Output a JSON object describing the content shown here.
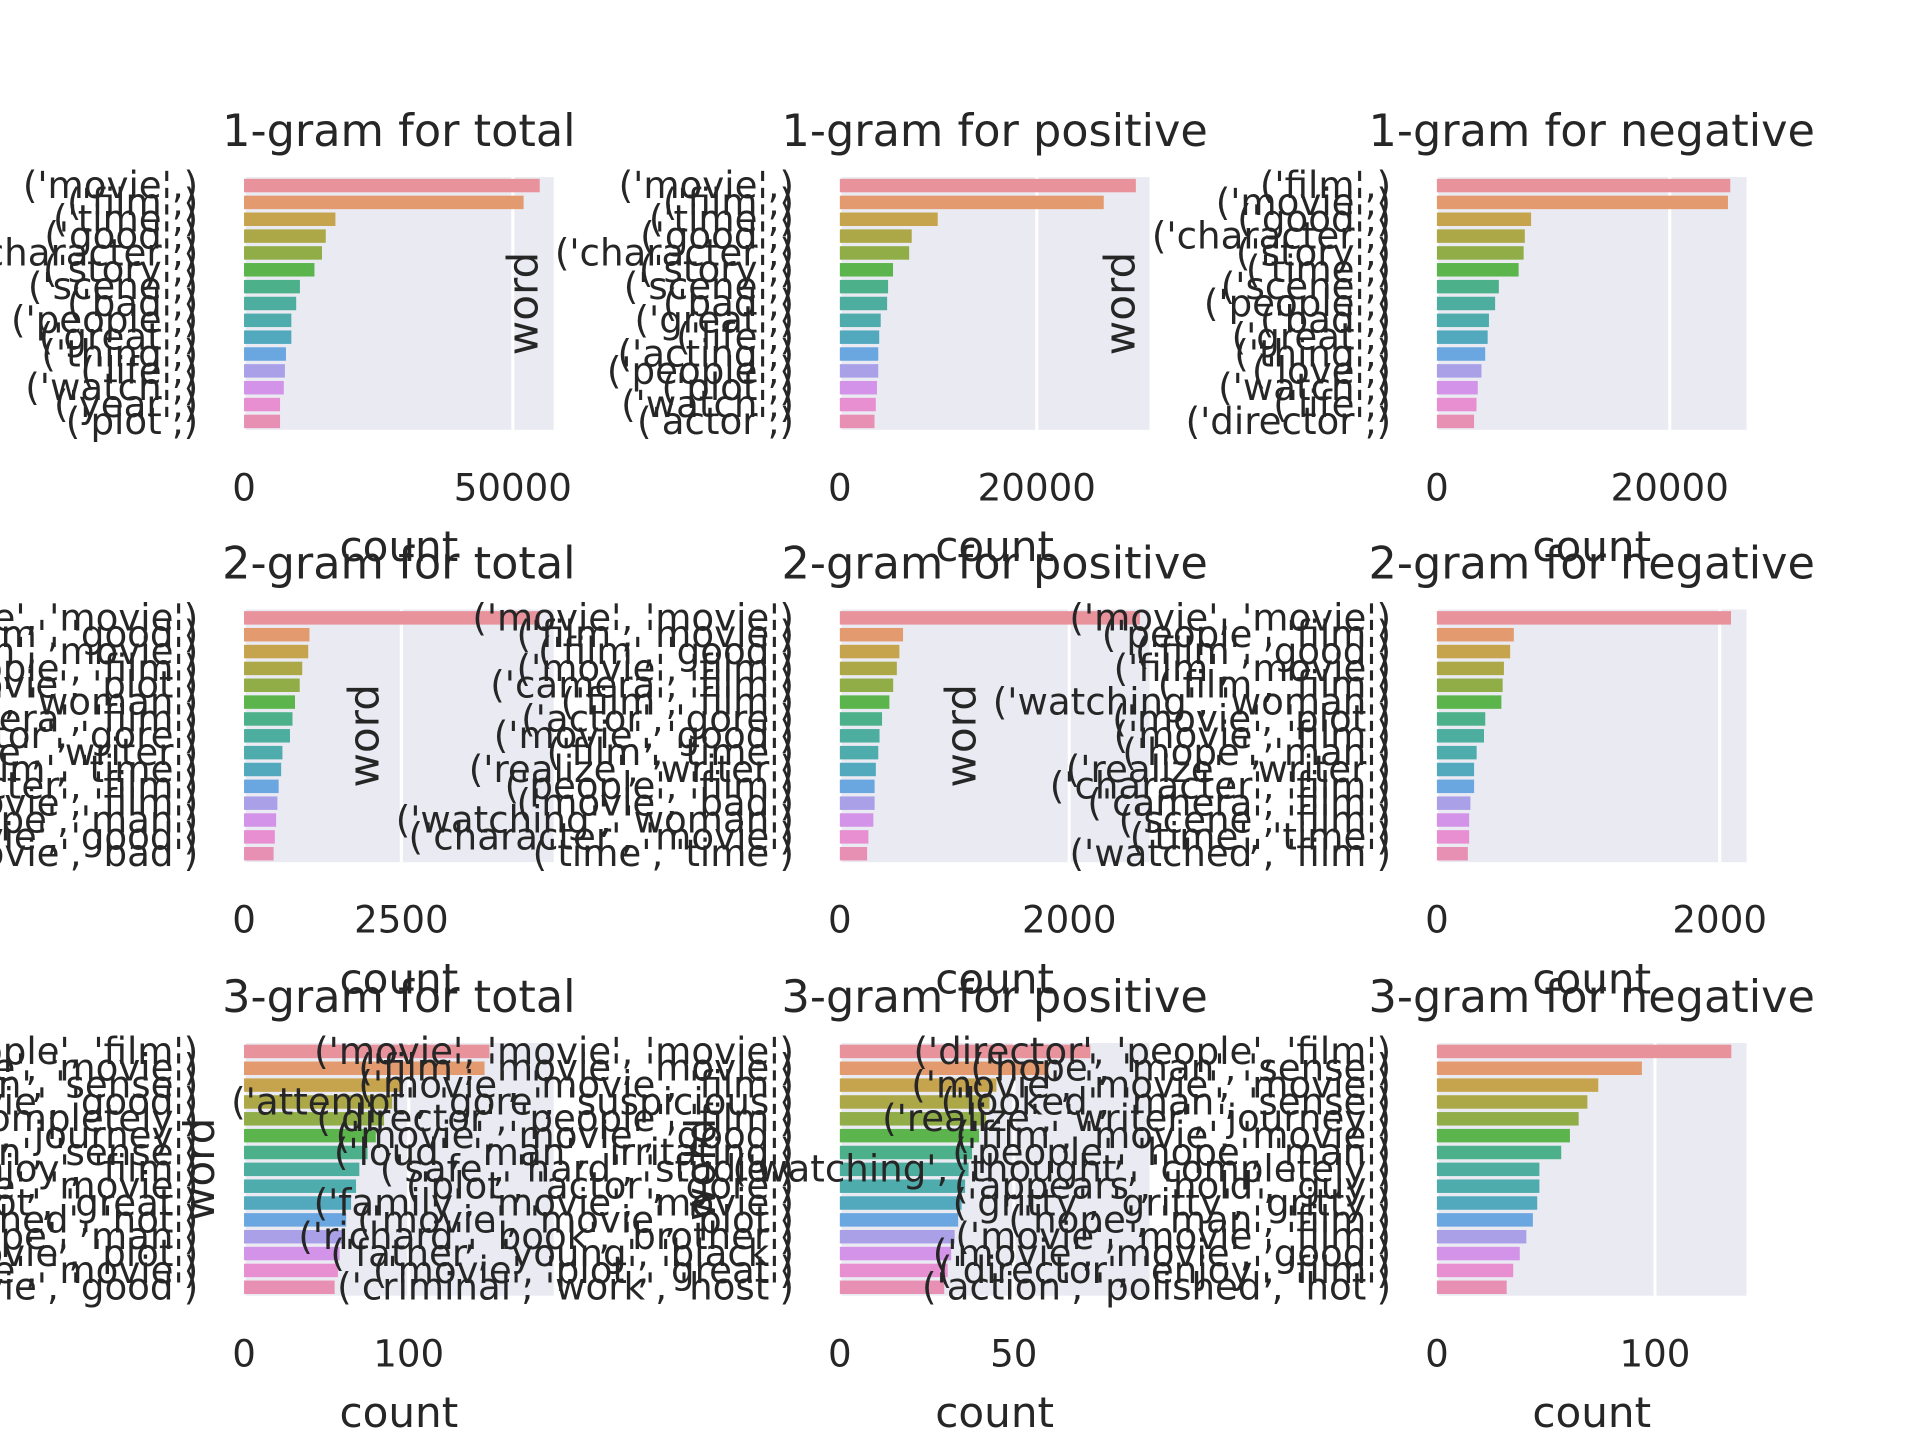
{
  "chart_data": [
    {
      "type": "bar",
      "orientation": "horizontal",
      "title": "1-gram for total",
      "xlabel": "count",
      "ylabel": "word",
      "categories": [
        "('movie',)",
        "('film',)",
        "('time',)",
        "('good',)",
        "('character',)",
        "('story',)",
        "('scene',)",
        "('bad',)",
        "('people',)",
        "('great',)",
        "('thing',)",
        "('life',)",
        "('watch',)",
        "('year',)",
        "('plot',)"
      ],
      "values": [
        55000,
        52000,
        17000,
        15200,
        14500,
        13100,
        10400,
        9700,
        8800,
        8800,
        7800,
        7600,
        7400,
        6700,
        6700
      ],
      "xlim": [
        0,
        57600
      ],
      "xticks": [
        0,
        50000
      ],
      "grid": true,
      "colors": [
        "#e8929c",
        "#e29a6e",
        "#c6a34d",
        "#ada847",
        "#90ad48",
        "#5bb54c",
        "#4cb08a",
        "#4daea0",
        "#4eacac",
        "#52a9bd",
        "#6aa6df",
        "#a9a0e8",
        "#d393e8",
        "#e88fd2",
        "#e890b4"
      ]
    },
    {
      "type": "bar",
      "orientation": "horizontal",
      "title": "1-gram for positive",
      "xlabel": "count",
      "ylabel": "word",
      "categories": [
        "('movie',)",
        "('film',)",
        "('time',)",
        "('good',)",
        "('character',)",
        "('story',)",
        "('scene',)",
        "('bad',)",
        "('great',)",
        "('life',)",
        "('acting',)",
        "('people',)",
        "('plot',)",
        "('watch',)",
        "('actor',)"
      ],
      "values": [
        30060,
        26800,
        9940,
        7300,
        7040,
        5400,
        4900,
        4800,
        4150,
        4000,
        3900,
        3900,
        3770,
        3650,
        3520
      ],
      "xlim": [
        0,
        31450
      ],
      "xticks": [
        0,
        20000
      ],
      "grid": true,
      "colors": [
        "#e8929c",
        "#e29a6e",
        "#c6a34d",
        "#ada847",
        "#90ad48",
        "#5bb54c",
        "#4cb08a",
        "#4daea0",
        "#4eacac",
        "#52a9bd",
        "#6aa6df",
        "#a9a0e8",
        "#d393e8",
        "#e88fd2",
        "#e890b4"
      ]
    },
    {
      "type": "bar",
      "orientation": "horizontal",
      "title": "1-gram for negative",
      "xlabel": "count",
      "ylabel": "word",
      "categories": [
        "('film',)",
        "('movie',)",
        "('good',)",
        "('character',)",
        "('story',)",
        "('time',)",
        "('scene',)",
        "('people',)",
        "('bad',)",
        "('great',)",
        "('thing',)",
        "('love',)",
        "('watch',)",
        "('life',)",
        "('director',)"
      ],
      "values": [
        25200,
        25000,
        8090,
        7550,
        7450,
        7020,
        5320,
        5000,
        4470,
        4360,
        4150,
        3830,
        3510,
        3400,
        3190
      ],
      "xlim": [
        0,
        26600
      ],
      "xticks": [
        0,
        20000
      ],
      "grid": true,
      "colors": [
        "#e8929c",
        "#e29a6e",
        "#c6a34d",
        "#ada847",
        "#90ad48",
        "#5bb54c",
        "#4cb08a",
        "#4daea0",
        "#4eacac",
        "#52a9bd",
        "#6aa6df",
        "#a9a0e8",
        "#d393e8",
        "#e88fd2",
        "#e890b4"
      ]
    },
    {
      "type": "bar",
      "orientation": "horizontal",
      "title": "2-gram for total",
      "xlabel": "count",
      "ylabel": "word",
      "categories": [
        "('movie', 'movie')",
        "('film', 'good')",
        "('film', 'movie')",
        "('people', 'film')",
        "('movie', 'plot')",
        "('watching', 'woman')",
        "('camera', 'film')",
        "('actor', 'gore')",
        "('realize', 'writer')",
        "('film', 'time')",
        "('character', 'film')",
        "('movie', 'film')",
        "('hope', 'man')",
        "('movie', 'good')",
        "('movie', 'bad')"
      ],
      "values": [
        4700,
        1040,
        1020,
        925,
        885,
        810,
        770,
        730,
        610,
        590,
        550,
        530,
        510,
        490,
        470
      ],
      "xlim": [
        0,
        4920
      ],
      "xticks": [
        0,
        2500
      ],
      "grid": true,
      "colors": [
        "#e8929c",
        "#e29a6e",
        "#c6a34d",
        "#ada847",
        "#90ad48",
        "#5bb54c",
        "#4cb08a",
        "#4daea0",
        "#4eacac",
        "#52a9bd",
        "#6aa6df",
        "#a9a0e8",
        "#d393e8",
        "#e88fd2",
        "#e890b4"
      ]
    },
    {
      "type": "bar",
      "orientation": "horizontal",
      "title": "2-gram for positive",
      "xlabel": "count",
      "ylabel": "word",
      "categories": [
        "('movie', 'movie')",
        "('film', 'movie')",
        "('film', 'good')",
        "('movie', 'film')",
        "('camera', 'film')",
        "('film', 'film')",
        "('actor', 'gore')",
        "('movie', 'good')",
        "('film', 'time')",
        "('realize', 'writer')",
        "('people', 'film')",
        "('movie', 'bad')",
        "('watching', 'woman')",
        "('character', 'movie')",
        "('time', 'time')"
      ],
      "values": [
        2616,
        551,
        519,
        497,
        465,
        432,
        368,
        346,
        335,
        314,
        303,
        303,
        292,
        249,
        238
      ],
      "xlim": [
        0,
        2700
      ],
      "xticks": [
        0,
        2000
      ],
      "grid": true,
      "colors": [
        "#e8929c",
        "#e29a6e",
        "#c6a34d",
        "#ada847",
        "#90ad48",
        "#5bb54c",
        "#4cb08a",
        "#4daea0",
        "#4eacac",
        "#52a9bd",
        "#6aa6df",
        "#a9a0e8",
        "#d393e8",
        "#e88fd2",
        "#e890b4"
      ]
    },
    {
      "type": "bar",
      "orientation": "horizontal",
      "title": "2-gram for negative",
      "xlabel": "count",
      "ylabel": "word",
      "categories": [
        "('movie', 'movie')",
        "('people', 'film')",
        "('film', 'good')",
        "('film', 'movie')",
        "('film', 'film')",
        "('watching', 'woman')",
        "('movie', 'plot')",
        "('movie', 'film')",
        "('hope', 'man')",
        "('realize', 'writer')",
        "('character', 'film')",
        "('camera', 'film')",
        "('scene', 'film')",
        "('time', 'time')",
        "('watched', 'film')"
      ],
      "values": [
        2080,
        544,
        518,
        474,
        465,
        456,
        342,
        333,
        281,
        263,
        263,
        237,
        228,
        228,
        219
      ],
      "xlim": [
        0,
        2190
      ],
      "xticks": [
        0,
        2000
      ],
      "grid": true,
      "colors": [
        "#e8929c",
        "#e29a6e",
        "#c6a34d",
        "#ada847",
        "#90ad48",
        "#5bb54c",
        "#4cb08a",
        "#4daea0",
        "#4eacac",
        "#52a9bd",
        "#6aa6df",
        "#a9a0e8",
        "#d393e8",
        "#e88fd2",
        "#e890b4"
      ]
    },
    {
      "type": "bar",
      "orientation": "horizontal",
      "title": "3-gram for total",
      "xlabel": "count",
      "ylabel": "word",
      "categories": [
        "('director', 'people', 'film')",
        "('film', 'movie', 'movie')",
        "('hope', 'man', 'sense')",
        "('film', 'movie', 'good')",
        "('thought', 'completely')",
        "('realize', 'writer', 'journey')",
        "('looked', 'man', 'sense')",
        "('director', 'enjoy', 'film')",
        "('family', 'movie', 'movie')",
        "('movie', 'plot', 'great')",
        "('action', 'polished', 'hot')",
        "('people', 'hope', 'man')",
        "('movie', 'movie', 'plot')",
        "('movie', 'movie', 'movie')",
        "('movie', 'movie', 'good')"
      ],
      "values": [
        149,
        146,
        96,
        90,
        85,
        80,
        75,
        70,
        68,
        65,
        62,
        60,
        58,
        57,
        55
      ],
      "xlim": [
        0,
        188
      ],
      "xticks": [
        0,
        100
      ],
      "grid": true,
      "colors": [
        "#e8929c",
        "#e29a6e",
        "#c6a34d",
        "#ada847",
        "#90ad48",
        "#5bb54c",
        "#4cb08a",
        "#4daea0",
        "#4eacac",
        "#52a9bd",
        "#6aa6df",
        "#a9a0e8",
        "#d393e8",
        "#e88fd2",
        "#e890b4"
      ]
    },
    {
      "type": "bar",
      "orientation": "horizontal",
      "title": "3-gram for positive",
      "xlabel": "count",
      "ylabel": "word",
      "categories": [
        "('movie', 'movie', 'movie')",
        "('film', 'movie', 'movie')",
        "('movie', 'movie', 'film')",
        "('attempt', 'gore', 'suspicious')",
        "('director', 'people', 'film')",
        "('movie', 'movie', 'good')",
        "('loud', 'man', 'irritating')",
        "('safe', 'hard', 'studio')",
        "('plot', 'actor', 'gore')",
        "('family', 'movie', 'movie')",
        "('movie', 'movie', 'plot')",
        "('richard', 'book', 'brother')",
        "('father', 'young', 'black')",
        "('movie', 'plot', 'great')",
        "('criminal', 'work', 'host')"
      ],
      "values": [
        72,
        60,
        45,
        43,
        42,
        40,
        38,
        37,
        36,
        35,
        34,
        33,
        32,
        31,
        30
      ],
      "xlim": [
        0,
        89
      ],
      "xticks": [
        0,
        50
      ],
      "grid": true,
      "colors": [
        "#e8929c",
        "#e29a6e",
        "#c6a34d",
        "#ada847",
        "#90ad48",
        "#5bb54c",
        "#4cb08a",
        "#4daea0",
        "#4eacac",
        "#52a9bd",
        "#6aa6df",
        "#a9a0e8",
        "#d393e8",
        "#e88fd2",
        "#e890b4"
      ]
    },
    {
      "type": "bar",
      "orientation": "horizontal",
      "title": "3-gram for negative",
      "xlabel": "count",
      "ylabel": "word",
      "categories": [
        "('director', 'people', 'film')",
        "('hope', 'man', 'sense')",
        "('movie', 'movie', 'movie')",
        "('looked', 'man', 'sense')",
        "('realize', 'writer', 'journey')",
        "('film', 'movie', 'movie')",
        "('people', 'hope', 'man')",
        "('watching', 'thought', 'completely')",
        "('appears', 'hold', 'guy')",
        "('gritty', 'gritty', 'gritty')",
        "('hope', 'man', 'film')",
        "('movie', 'movie', 'film')",
        "('movie', 'movie', 'good')",
        "('director', 'enjoy', 'film')",
        "('action', 'polished', 'hot')"
      ],
      "values": [
        135,
        94,
        74,
        69,
        65,
        61,
        57,
        47,
        47,
        46,
        44,
        41,
        38,
        35,
        32
      ],
      "xlim": [
        0,
        142
      ],
      "xticks": [
        0,
        100
      ],
      "grid": true,
      "colors": [
        "#e8929c",
        "#e29a6e",
        "#c6a34d",
        "#ada847",
        "#90ad48",
        "#5bb54c",
        "#4cb08a",
        "#4daea0",
        "#4eacac",
        "#52a9bd",
        "#6aa6df",
        "#a9a0e8",
        "#d393e8",
        "#e88fd2",
        "#e890b4"
      ]
    }
  ]
}
